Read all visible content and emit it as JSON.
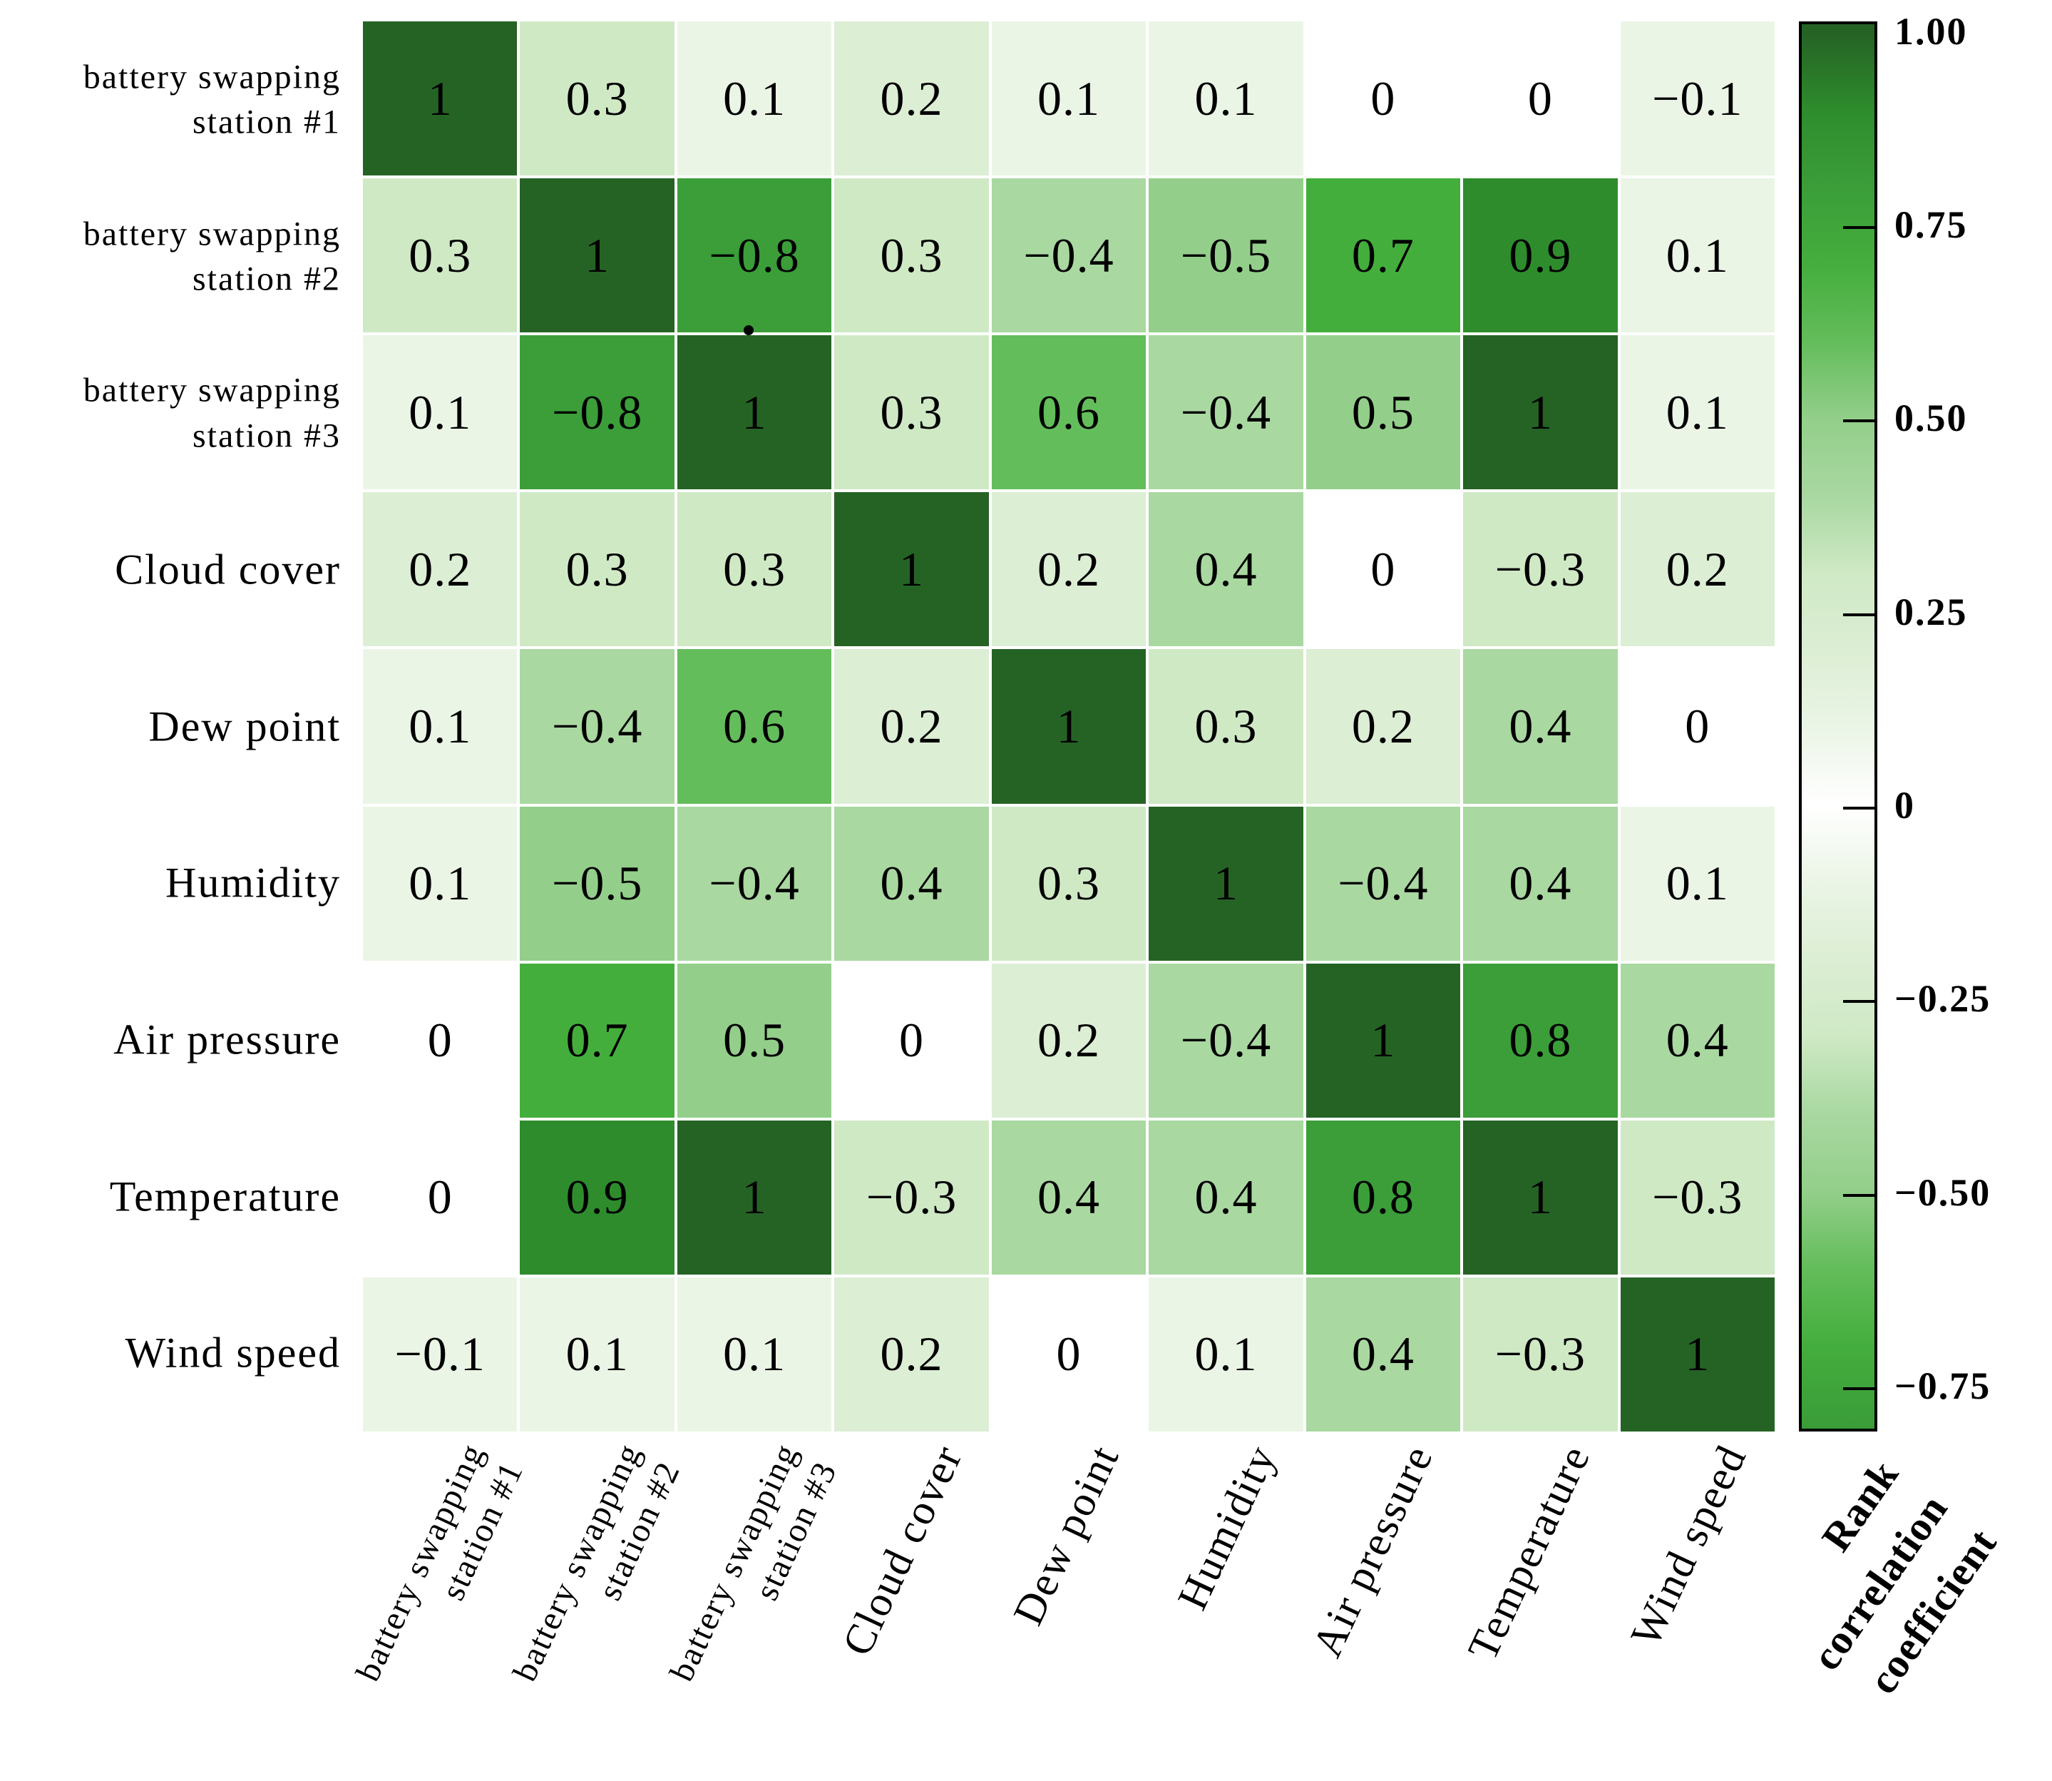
{
  "chart_data": {
    "type": "heatmap",
    "title": "",
    "categories": [
      "battery swapping\nstation #1",
      "battery swapping\nstation #2",
      "battery swapping\nstation #3",
      "Cloud cover",
      "Dew point",
      "Humidity",
      "Air pressure",
      "Temperature",
      "Wind speed"
    ],
    "matrix": [
      [
        1,
        0.3,
        0.1,
        0.2,
        0.1,
        0.1,
        0,
        0,
        -0.1
      ],
      [
        0.3,
        1,
        -0.8,
        0.3,
        -0.4,
        -0.5,
        0.7,
        0.9,
        0.1
      ],
      [
        0.1,
        -0.8,
        1,
        0.3,
        0.6,
        -0.4,
        0.5,
        1,
        0.1
      ],
      [
        0.2,
        0.3,
        0.3,
        1,
        0.2,
        0.4,
        0,
        -0.3,
        0.2
      ],
      [
        0.1,
        -0.4,
        0.6,
        0.2,
        1,
        0.3,
        0.2,
        0.4,
        0
      ],
      [
        0.1,
        -0.5,
        -0.4,
        0.4,
        0.3,
        1,
        -0.4,
        0.4,
        0.1
      ],
      [
        0,
        0.7,
        0.5,
        0,
        0.2,
        -0.4,
        1,
        0.8,
        0.4
      ],
      [
        0,
        0.9,
        1,
        -0.3,
        0.4,
        0.4,
        0.8,
        1,
        -0.3
      ],
      [
        -0.1,
        0.1,
        0.1,
        0.2,
        0,
        0.1,
        0.4,
        -0.3,
        1
      ]
    ],
    "grid": "off",
    "legend_position": "right-colorbar",
    "colorbar": {
      "label": "Rank correlation coefficient",
      "label_lines": "Rank\ncorrelation\ncoefficient",
      "ticks": [
        {
          "value": 1.0,
          "label": "1.00"
        },
        {
          "value": 0.75,
          "label": "0.75"
        },
        {
          "value": 0.5,
          "label": "0.50"
        },
        {
          "value": 0.25,
          "label": "0.25"
        },
        {
          "value": 0.0,
          "label": "0"
        },
        {
          "value": -0.25,
          "label": "-0.25"
        },
        {
          "value": -0.5,
          "label": "-0.50"
        },
        {
          "value": -0.75,
          "label": "-0.75"
        }
      ],
      "vmax": 1.0,
      "vmin": -0.81
    },
    "colors": {
      "background": "#ffffff",
      "text": "#000000",
      "border": "#000000",
      "scale_note": "green intensity maps |coefficient|; white at 0",
      "stops": [
        [
          0.0,
          "#ffffff"
        ],
        [
          0.1,
          "#ebf5e6"
        ],
        [
          0.2,
          "#dceed4"
        ],
        [
          0.3,
          "#cfe9c5"
        ],
        [
          0.4,
          "#a9d8a1"
        ],
        [
          0.5,
          "#93cf8a"
        ],
        [
          0.6,
          "#64bd5b"
        ],
        [
          0.7,
          "#44ae3d"
        ],
        [
          0.8,
          "#3b9e39"
        ],
        [
          0.9,
          "#2e8c2c"
        ],
        [
          1.0,
          "#256325"
        ]
      ]
    },
    "artifacts": {
      "stray_dot": "."
    }
  }
}
